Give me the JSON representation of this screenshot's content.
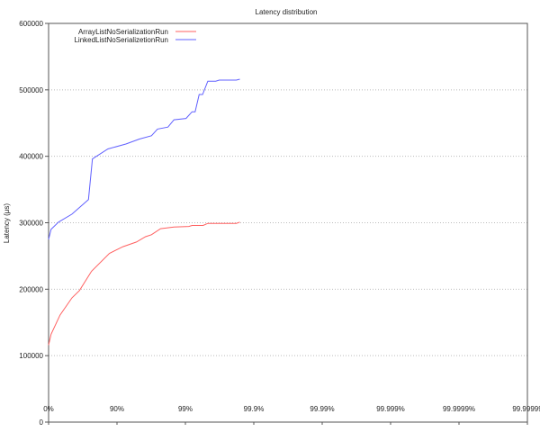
{
  "chart_data": {
    "type": "line",
    "title": "Latency distribution",
    "xlabel": "",
    "ylabel": "Latency (μs)",
    "x_scale": "percentile (log of 1/(1-p))",
    "x_ticks": [
      "0%",
      "90%",
      "99%",
      "99.9%",
      "99.99%",
      "99.999%",
      "99.9999%",
      "99.99999"
    ],
    "y_ticks": [
      "0",
      "100000",
      "200000",
      "300000",
      "400000",
      "500000",
      "600000"
    ],
    "ylim": [
      0,
      600000
    ],
    "grid": "horizontal dotted",
    "legend_position": "top-left",
    "series": [
      {
        "name": "ArrayListNoSerializationRun",
        "color": "#ff6060",
        "points": [
          [
            0,
            116000
          ],
          [
            7.9,
            132000
          ],
          [
            31.9,
            161000
          ],
          [
            54.5,
            187000
          ],
          [
            64.6,
            198000
          ],
          [
            76.4,
            227000
          ],
          [
            87.1,
            254000
          ],
          [
            91.8,
            264000
          ],
          [
            94.8,
            271000
          ],
          [
            96.17,
            279000
          ],
          [
            96.87,
            282000
          ],
          [
            97.69,
            291000
          ],
          [
            98.53,
            293500
          ],
          [
            99.11,
            294500
          ],
          [
            99.2,
            296000
          ],
          [
            99.45,
            296000
          ],
          [
            99.53,
            299000
          ],
          [
            99.82,
            299000
          ],
          [
            99.84,
            301000
          ]
        ]
      },
      {
        "name": "LinkedListNoSerializetionRun",
        "color": "#6060ff",
        "points": [
          [
            0,
            275000
          ],
          [
            7.9,
            290000
          ],
          [
            28.3,
            301000
          ],
          [
            54.5,
            313000
          ],
          [
            73.9,
            335000
          ],
          [
            77.1,
            396000
          ],
          [
            86.4,
            411000
          ],
          [
            92.6,
            418500
          ],
          [
            95.3,
            426000
          ],
          [
            96.87,
            431000
          ],
          [
            97.44,
            441000
          ],
          [
            98.2,
            444000
          ],
          [
            98.53,
            455000
          ],
          [
            99.02,
            457000
          ],
          [
            99.2,
            467000
          ],
          [
            99.28,
            467000
          ],
          [
            99.37,
            493000
          ],
          [
            99.44,
            493000
          ],
          [
            99.53,
            513000
          ],
          [
            99.64,
            513000
          ],
          [
            99.68,
            514700
          ],
          [
            99.82,
            514700
          ],
          [
            99.84,
            516000
          ]
        ]
      }
    ]
  }
}
